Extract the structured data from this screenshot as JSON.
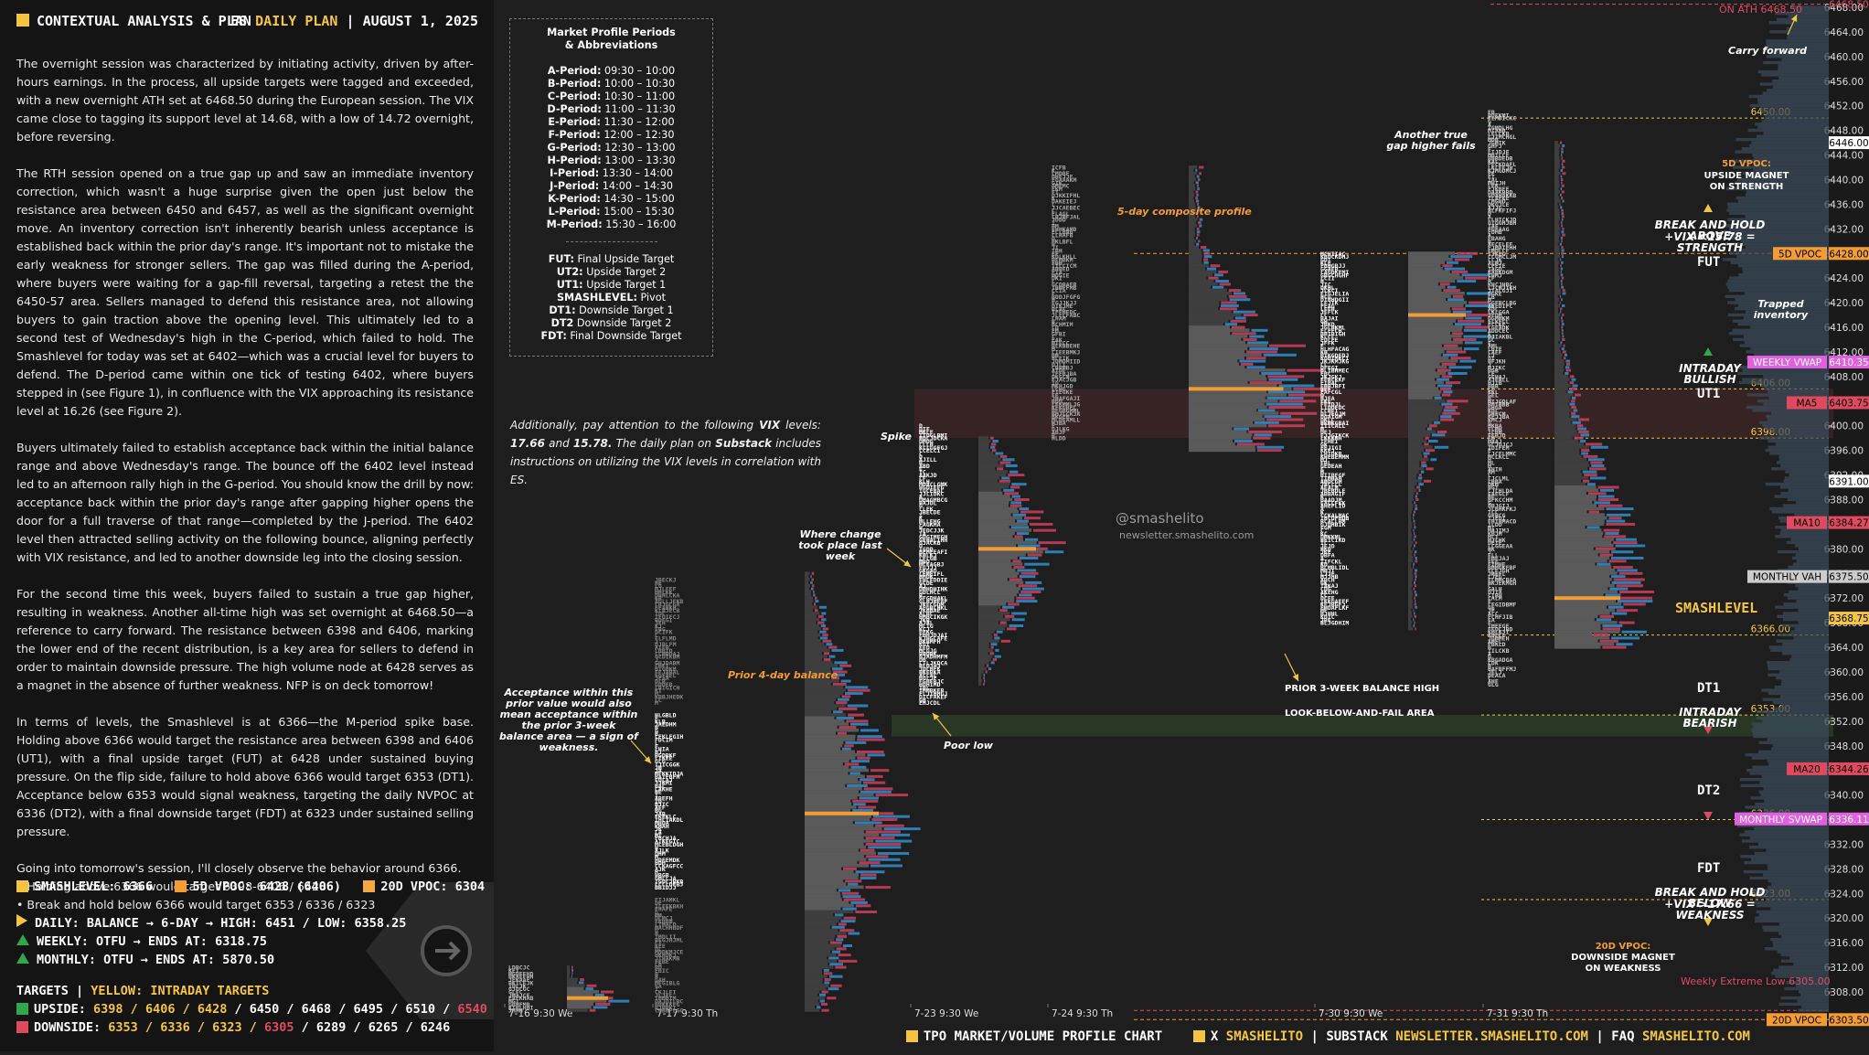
{
  "header": {
    "left": "CONTEXTUAL ANALYSIS & PLAN",
    "es": "ES",
    "plan": "DAILY PLAN",
    "date": "AUGUST 1, 2025"
  },
  "paragraphs": [
    "The overnight session was characterized by initiating activity, driven by after-hours earnings. In the process, all upside targets were tagged and exceeded, with a new overnight ATH set at 6468.50 during the European session. The VIX came close to tagging its support level at 14.68, with a low of 14.72 overnight, before reversing.",
    "The RTH session opened on a true gap up and saw an immediate inventory correction, which wasn't a huge surprise given the open just below the resistance area between 6450 and 6457, as well as the significant overnight move. An inventory correction isn't inherently bearish unless acceptance is established back within the prior day's range. It's important not to mistake the early weakness for stronger sellers. The gap was filled during the A-period, where buyers were waiting for a gap-fill reversal, targeting a retest the the 6450-57 area. Sellers managed to defend this resistance area, not allowing buyers to gain traction above the opening level. This ultimately led to a second test of Wednesday's high in the C-period, which failed to hold. The Smashlevel for today was set at 6402—which was a crucial level for buyers to defend. The D-period came within one tick of testing 6402, where buyers stepped in (see Figure 1), in confluence with the VIX approaching its resistance level at 16.26 (see Figure 2).",
    "Buyers ultimately failed to establish acceptance back within the initial balance range and above Wednesday's range. The bounce off the 6402 level instead led to an afternoon rally high in the G-period. You should know the drill by now: acceptance back within the prior day's range after gapping higher opens the door for a full traverse of that range—completed by the J-period. The 6402 level then attracted selling activity on the following bounce, aligning perfectly with VIX resistance, and led to another downside leg into the closing session.",
    "For the second time this week, buyers failed to sustain a true gap higher, resulting in weakness. Another all-time high was set overnight at 6468.50—a reference to carry forward. The resistance between 6398 and 6406, marking the lower end of the recent distribution, is a key area for sellers to defend in order to maintain downside pressure. The high volume node at 6428 serves as a magnet in the absence of further weakness. NFP is on deck tomorrow!",
    "In terms of levels, the Smashlevel is at 6366—the M-period spike base. Holding above 6366 would target the resistance area between 6398 and 6406 (UT1), with a final upside target (FUT) at 6428 under sustained buying pressure. On the flip side, failure to hold above 6366 would target 6353 (DT1). Acceptance below 6353 would signal weakness, targeting the daily NVPOC at 6336 (DT2), with a final downside target (FDT) at 6323 under sustained selling pressure."
  ],
  "closing": {
    "intro": "Going into tomorrow's session, I'll closely observe the behavior around 6366.",
    "bullet1": "• Holding above 6366 would target 6398-6406 / 6428",
    "bullet2": "• Break and hold below 6366 would target 6353 / 6336 / 6323"
  },
  "summary": {
    "smashlevel": "SMASHLEVEL: 6366",
    "vpoc5": "5D VPOC: 6428 (6406)",
    "vpoc20": "20D VPOC: 6304",
    "daily": "DAILY: BALANCE → 6-DAY → HIGH: 6451 / LOW: 6358.25",
    "weekly": "WEEKLY: OTFU → ENDS AT: 6318.75",
    "monthly": "MONTHLY: OTFU → ENDS AT: 5870.50",
    "targets_title": "TARGETS",
    "targets_yellow": "YELLOW: INTRADAY TARGETS",
    "upside_label": "UPSIDE:",
    "upside_yellow": "6398 / 6406 / 6428",
    "upside_white": "/ 6450 / 6468 / 6495 / 6510 /",
    "upside_red": "6540",
    "downside_label": "DOWNSIDE:",
    "downside_yellow": "6353 / 6336 / 6323 /",
    "downside_red": "6305",
    "downside_white": "/ 6289 / 6265 / 6246",
    "colors": {
      "smash": "#f5c542",
      "vpoc5": "#f39c34",
      "vpoc20": "#f5a742",
      "up": "#2ea84a",
      "down": "#e04a5f"
    }
  },
  "legend": {
    "title": "Market Profile Periods",
    "title2": "& Abbreviations",
    "periods": [
      [
        "A-Period:",
        "09:30 – 10:00"
      ],
      [
        "B-Period:",
        "10:00 – 10:30"
      ],
      [
        "C-Period:",
        "10:30 – 11:00"
      ],
      [
        "D-Period:",
        "11:00 – 11:30"
      ],
      [
        "E-Period:",
        "11:30 – 12:00"
      ],
      [
        "F-Period:",
        "12:00 – 12:30"
      ],
      [
        "G-Period:",
        "12:30 – 13:00"
      ],
      [
        "H-Period:",
        "13:00 – 13:30"
      ],
      [
        "I-Period:",
        "13:30 – 14:00"
      ],
      [
        "J-Period:",
        "14:00 – 14:30"
      ],
      [
        "K-Period:",
        "14:30 – 15:00"
      ],
      [
        "L-Period:",
        "15:00 – 15:30"
      ],
      [
        "M-Period:",
        "15:30 – 16:00"
      ]
    ],
    "abbrev": [
      [
        "FUT:",
        "Final Upside Target"
      ],
      [
        "UT2:",
        "Upside Target 2"
      ],
      [
        "UT1:",
        "Upside Target 1"
      ],
      [
        "SMASHLEVEL:",
        "Pivot"
      ],
      [
        "DT1:",
        "Downside Target 1"
      ],
      [
        "DT2",
        "Downside Target 2"
      ],
      [
        "FDT:",
        "Final Downside Target"
      ]
    ]
  },
  "vix_note": {
    "a": "Additionally, pay attention to the following",
    "vix": "VIX",
    "b": "levels:",
    "l1": "17.66",
    "and": "and",
    "l2": "15.78.",
    "c": "The daily plan on",
    "substack": "Substack",
    "d": "includes instructions on utilizing the VIX levels in correlation with ES."
  },
  "annotations": {
    "ath": "ON ATH 6468.50",
    "carry": "Carry forward",
    "true_gap": "Another true gap higher fails",
    "composite": "5-day composite profile",
    "vpoc5_title": "5D VPOC:",
    "vpoc5_sub": "UPSIDE MAGNET ON STRENGTH",
    "break_above": "BREAK AND HOLD ABOVE",
    "break_above_vix": "+VIX <15.78 = STRENGTH",
    "fut": "FUT",
    "trapped": "Trapped inventory",
    "intraday_bullish": "INTRADAY BULLISH",
    "ut1": "UT1",
    "spike": "Spike",
    "watermark1": "@smashelito",
    "watermark2": "newsletter.smashelito.com",
    "where_change": "Where change took place last week",
    "smashlevel": "SMASHLEVEL",
    "prior4": "Prior 4-day balance",
    "prior3w": "PRIOR 3-WEEK BALANCE HIGH",
    "dt1": "DT1",
    "lbaf": "LOOK-BELOW-AND-FAIL AREA",
    "intraday_bearish": "INTRADAY BEARISH",
    "acceptance": "Acceptance within this prior value would also mean acceptance within the prior 3-week balance area — a sign of weakness.",
    "poor_low": "Poor low",
    "dt2": "DT2",
    "fdt": "FDT",
    "break_below": "BREAK AND HOLD BELOW",
    "break_below_vix": "+VIX >17.66 = WEAKNESS",
    "vpoc20_title": "20D VPOC:",
    "vpoc20_sub": "DOWNSIDE MAGNET ON WEAKNESS",
    "weekly_ext": "Weekly Extreme Low 6305.00"
  },
  "chart_data": {
    "type": "tpo-profile",
    "ylim": [
      6304,
      6468
    ],
    "y_ticks": [
      6468,
      6464,
      6460,
      6456,
      6452,
      6448,
      6444,
      6440,
      6436,
      6432,
      6428,
      6424,
      6420,
      6416,
      6412,
      6408,
      6404,
      6400,
      6396,
      6392,
      6388,
      6384,
      6380,
      6376,
      6372,
      6368,
      6364,
      6360,
      6356,
      6352,
      6348,
      6344,
      6340,
      6336,
      6332,
      6328,
      6324,
      6320,
      6316,
      6312,
      6308
    ],
    "y_tick_labels": [
      "6468.00",
      "6464.00",
      "6460.00",
      "6456.00",
      "6452.00",
      "6448.00",
      "6444.00",
      "6440.00",
      "6436.00",
      "6432.00",
      "6428.00",
      "6424.00",
      "6420.00",
      "6416.00",
      "6412.00",
      "6408.00",
      "6404.00",
      "6400.00",
      "6396.00",
      "6392.00",
      "6388.00",
      "6384.00",
      "6380.00",
      "6376.00",
      "6372.00",
      "6368.00",
      "6364.00",
      "6360.00",
      "6356.00",
      "6352.00",
      "6348.00",
      "6344.00",
      "6340.00",
      "6336.00",
      "6332.00",
      "6328.00",
      "6324.00",
      "6320.00",
      "6316.00",
      "6312.00",
      "6308.00"
    ],
    "x_labels": [
      "7-16  9:30 We",
      "7-17  9:30 Th",
      "7-23  9:30 We",
      "7-24  9:30 Th",
      "7-30  9:30 We",
      "7-31  9:30 Th"
    ],
    "price_tags": [
      {
        "label": "6468.50",
        "price": 6468.5,
        "color": "#e04a5f",
        "text": "#e04a5f",
        "fill": false
      },
      {
        "label": "6446.00",
        "price": 6446,
        "color": "#ffffff",
        "text": "#000000",
        "fill": true
      },
      {
        "label": "5D VPOC",
        "price": 6428,
        "color": "#f39c34",
        "text": "#000000",
        "fill": true,
        "value": "6428.00"
      },
      {
        "label": "WEEKLY VWAP",
        "price": 6410.35,
        "color": "#e060e0",
        "text": "#ffffff",
        "fill": true,
        "value": "6410.35"
      },
      {
        "label": "MA5",
        "price": 6403.75,
        "color": "#e04a5f",
        "text": "#000000",
        "fill": true,
        "value": "6403.75"
      },
      {
        "label": "6391.00",
        "price": 6391,
        "color": "#ffffff",
        "text": "#000000",
        "fill": true
      },
      {
        "label": "MA10",
        "price": 6384.27,
        "color": "#e04a5f",
        "text": "#000000",
        "fill": true,
        "value": "6384.27"
      },
      {
        "label": "MONTHLY VAH",
        "price": 6375.5,
        "color": "#cccccc",
        "text": "#000000",
        "fill": true,
        "value": "6375.50"
      },
      {
        "label": "6368.75",
        "price": 6368.75,
        "color": "#f5c542",
        "text": "#000000",
        "fill": true
      },
      {
        "label": "MA20",
        "price": 6344.26,
        "color": "#e04a5f",
        "text": "#000000",
        "fill": true,
        "value": "6344.26"
      },
      {
        "label": "MONTHLY SVWAP",
        "price": 6336.11,
        "color": "#e060e0",
        "text": "#ffffff",
        "fill": true,
        "value": "6336.11"
      },
      {
        "label": "20D VPOC",
        "price": 6303.5,
        "color": "#f39c34",
        "text": "#000000",
        "fill": true,
        "value": "6303.50"
      }
    ],
    "levels": [
      {
        "label": "6450.00",
        "price": 6450
      },
      {
        "label": "6406.00",
        "price": 6406
      },
      {
        "label": "6398.00",
        "price": 6398
      },
      {
        "label": "6366.00",
        "price": 6366
      },
      {
        "label": "6353.00",
        "price": 6353
      },
      {
        "label": "6336.00",
        "price": 6336
      },
      {
        "label": "6323.00",
        "price": 6323
      }
    ]
  }
}
